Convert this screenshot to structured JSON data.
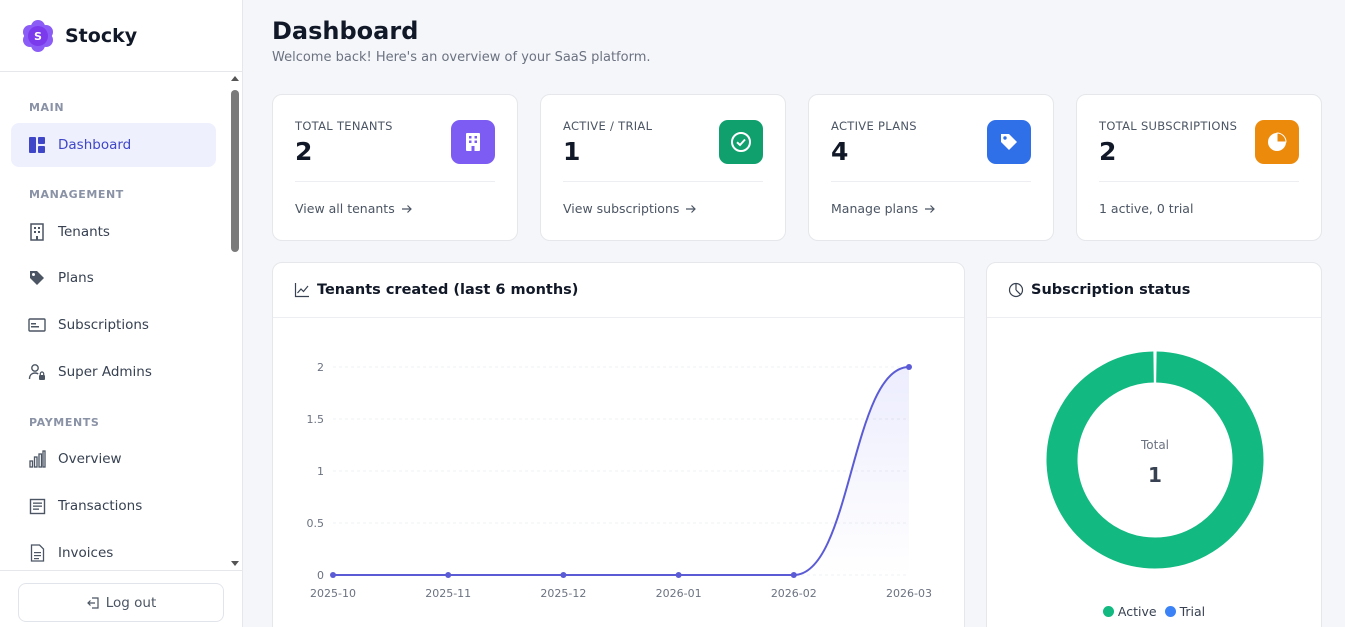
{
  "brand": {
    "name": "Stocky",
    "logo_letter": "S"
  },
  "sidebar": {
    "sections": {
      "main": "MAIN",
      "management": "MANAGEMENT",
      "payments": "PAYMENTS"
    },
    "items": [
      {
        "label": "Dashboard",
        "icon": "dashboard-icon",
        "active": true
      },
      {
        "label": "Tenants",
        "icon": "building-icon"
      },
      {
        "label": "Plans",
        "icon": "tag-icon"
      },
      {
        "label": "Subscriptions",
        "icon": "card-icon"
      },
      {
        "label": "Super Admins",
        "icon": "user-lock-icon"
      },
      {
        "label": "Overview",
        "icon": "bar-chart-icon"
      },
      {
        "label": "Transactions",
        "icon": "receipt-icon"
      },
      {
        "label": "Invoices",
        "icon": "document-icon"
      }
    ],
    "logout_label": "Log out"
  },
  "header": {
    "title": "Dashboard",
    "subtitle": "Welcome back! Here's an overview of your SaaS platform."
  },
  "stats": [
    {
      "label": "TOTAL TENANTS",
      "value": "2",
      "link": "View all tenants",
      "icon": "building-icon",
      "color": "#7c5cf2"
    },
    {
      "label": "ACTIVE / TRIAL",
      "value": "1",
      "link": "View subscriptions",
      "icon": "check-circle-icon",
      "color": "#0fa06e"
    },
    {
      "label": "ACTIVE PLANS",
      "value": "4",
      "link": "Manage plans",
      "icon": "tag-icon",
      "color": "#2f6fe8"
    },
    {
      "label": "TOTAL SUBSCRIPTIONS",
      "value": "2",
      "link": "1 active, 0 trial",
      "icon": "pie-icon",
      "color": "#ec8a0c"
    }
  ],
  "line_panel": {
    "title": "Tenants created (last 6 months)"
  },
  "donut_panel": {
    "title": "Subscription status",
    "center_label": "Total",
    "center_value": "1"
  },
  "chart_data": [
    {
      "type": "line",
      "title": "Tenants created (last 6 months)",
      "x": [
        "2025-10",
        "2025-11",
        "2025-12",
        "2026-01",
        "2026-02",
        "2026-03"
      ],
      "series": [
        {
          "values": [
            0,
            0,
            0,
            0,
            0,
            2
          ],
          "color": "#5b5bd6"
        }
      ],
      "yticks": [
        "0",
        "0.5",
        "1",
        "1.5",
        "2"
      ],
      "ylim": [
        0,
        2
      ],
      "grid": true
    },
    {
      "type": "pie",
      "title": "Subscription status",
      "labels": [
        "Active",
        "Trial"
      ],
      "values": [
        1,
        0
      ],
      "colors": [
        "#12b981",
        "#3b82f6"
      ],
      "legend": "bottom"
    }
  ]
}
